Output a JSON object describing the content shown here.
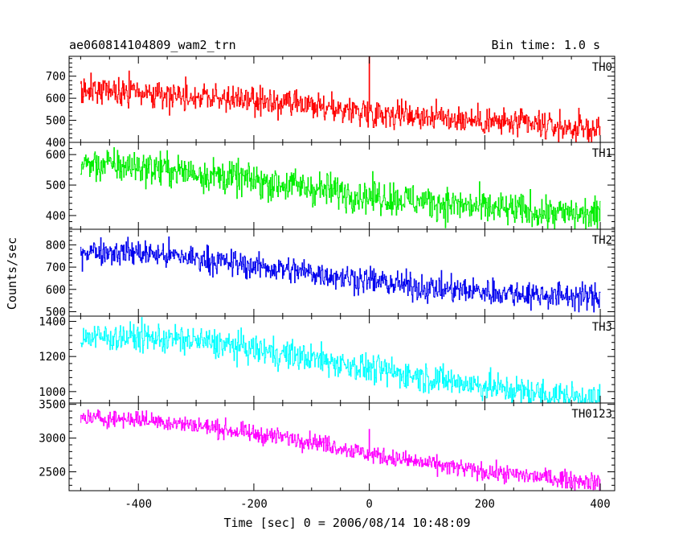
{
  "chart_data": {
    "type": "line",
    "title": "ae060814104809_wam2_trn",
    "subtitle": "Bin time: 1.0 s",
    "xlabel": "Time [sec] 0 = 2006/08/14 10:48:09",
    "ylabel": "Counts/sec",
    "xlim": [
      -520,
      425
    ],
    "x_ticks": [
      -400,
      -200,
      0,
      200,
      400
    ],
    "x_range": [
      -500,
      400
    ],
    "panels": [
      {
        "name": "TH0",
        "color": "#ff0000",
        "ylim": [
          400,
          790
        ],
        "y_ticks": [
          400,
          500,
          600,
          700
        ],
        "trend": [
          [
            -500,
            640
          ],
          [
            -400,
            625
          ],
          [
            -300,
            610
          ],
          [
            -200,
            585
          ],
          [
            -100,
            560
          ],
          [
            0,
            540
          ],
          [
            100,
            520
          ],
          [
            200,
            495
          ],
          [
            300,
            475
          ],
          [
            400,
            455
          ]
        ],
        "noise": 32,
        "spikes": [
          {
            "x": 0,
            "value": 790
          }
        ]
      },
      {
        "name": "TH1",
        "color": "#00ee00",
        "ylim": [
          355,
          640
        ],
        "y_ticks": [
          400,
          500,
          600
        ],
        "trend": [
          [
            -500,
            570
          ],
          [
            -400,
            560
          ],
          [
            -300,
            540
          ],
          [
            -200,
            515
          ],
          [
            -100,
            490
          ],
          [
            0,
            465
          ],
          [
            100,
            445
          ],
          [
            200,
            425
          ],
          [
            300,
            410
          ],
          [
            400,
            400
          ]
        ],
        "noise": 28,
        "spikes": []
      },
      {
        "name": "TH2",
        "color": "#0000ee",
        "ylim": [
          480,
          870
        ],
        "y_ticks": [
          500,
          600,
          700,
          800
        ],
        "trend": [
          [
            -500,
            775
          ],
          [
            -400,
            765
          ],
          [
            -300,
            740
          ],
          [
            -200,
            705
          ],
          [
            -100,
            675
          ],
          [
            0,
            640
          ],
          [
            100,
            605
          ],
          [
            200,
            590
          ],
          [
            300,
            575
          ],
          [
            400,
            565
          ]
        ],
        "noise": 30,
        "spikes": []
      },
      {
        "name": "TH3",
        "color": "#00ffff",
        "ylim": [
          935,
          1430
        ],
        "y_ticks": [
          1000,
          1200,
          1400
        ],
        "trend": [
          [
            -500,
            1310
          ],
          [
            -400,
            1310
          ],
          [
            -300,
            1290
          ],
          [
            -200,
            1240
          ],
          [
            -100,
            1190
          ],
          [
            0,
            1130
          ],
          [
            100,
            1080
          ],
          [
            200,
            1030
          ],
          [
            300,
            985
          ],
          [
            400,
            955
          ]
        ],
        "noise": 42,
        "spikes": []
      },
      {
        "name": "TH0123",
        "color": "#ff00ff",
        "ylim": [
          2220,
          3520
        ],
        "y_ticks": [
          2500,
          3000,
          3500
        ],
        "trend": [
          [
            -500,
            3300
          ],
          [
            -400,
            3280
          ],
          [
            -300,
            3190
          ],
          [
            -200,
            3060
          ],
          [
            -100,
            2960
          ],
          [
            0,
            2760
          ],
          [
            100,
            2620
          ],
          [
            200,
            2500
          ],
          [
            300,
            2420
          ],
          [
            400,
            2340
          ]
        ],
        "noise": 65,
        "spikes": [
          {
            "x": 0,
            "value": 3130
          }
        ]
      }
    ]
  }
}
